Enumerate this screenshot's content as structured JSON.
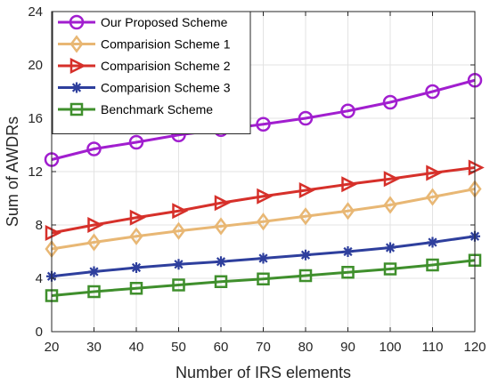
{
  "chart_data": {
    "type": "line",
    "xlabel": "Number of IRS elements",
    "ylabel": "Sum of AWDRs",
    "x": [
      20,
      30,
      40,
      50,
      60,
      70,
      80,
      90,
      100,
      110,
      120
    ],
    "xlim": [
      20,
      120
    ],
    "ylim": [
      0,
      24
    ],
    "xticks": [
      "20",
      "30",
      "40",
      "50",
      "60",
      "70",
      "80",
      "90",
      "100",
      "110",
      "120"
    ],
    "yticks": [
      "0",
      "4",
      "8",
      "12",
      "16",
      "20",
      "24"
    ],
    "grid": true,
    "legend_position": "top-left",
    "series": [
      {
        "name": "Our Proposed Scheme",
        "color": "#a11ecf",
        "marker": "circle",
        "values": [
          12.9,
          13.7,
          14.2,
          14.75,
          15.15,
          15.55,
          16.0,
          16.55,
          17.2,
          18.0,
          18.85
        ]
      },
      {
        "name": "Comparision Scheme 1",
        "color": "#e8b774",
        "marker": "diamond",
        "values": [
          6.2,
          6.7,
          7.15,
          7.55,
          7.9,
          8.25,
          8.65,
          9.05,
          9.5,
          10.1,
          10.7
        ]
      },
      {
        "name": "Comparision Scheme 2",
        "color": "#d6302a",
        "marker": "triangle-right",
        "values": [
          7.4,
          8.0,
          8.55,
          9.05,
          9.65,
          10.15,
          10.6,
          11.05,
          11.45,
          11.9,
          12.3
        ]
      },
      {
        "name": "Comparision Scheme 3",
        "color": "#2e3f9d",
        "marker": "asterisk",
        "values": [
          4.15,
          4.5,
          4.8,
          5.05,
          5.25,
          5.5,
          5.75,
          6.0,
          6.3,
          6.7,
          7.15
        ]
      },
      {
        "name": "Benchmark Scheme",
        "color": "#3f8f2c",
        "marker": "square",
        "values": [
          2.7,
          3.0,
          3.25,
          3.5,
          3.75,
          3.95,
          4.2,
          4.45,
          4.7,
          5.0,
          5.35
        ]
      }
    ]
  }
}
